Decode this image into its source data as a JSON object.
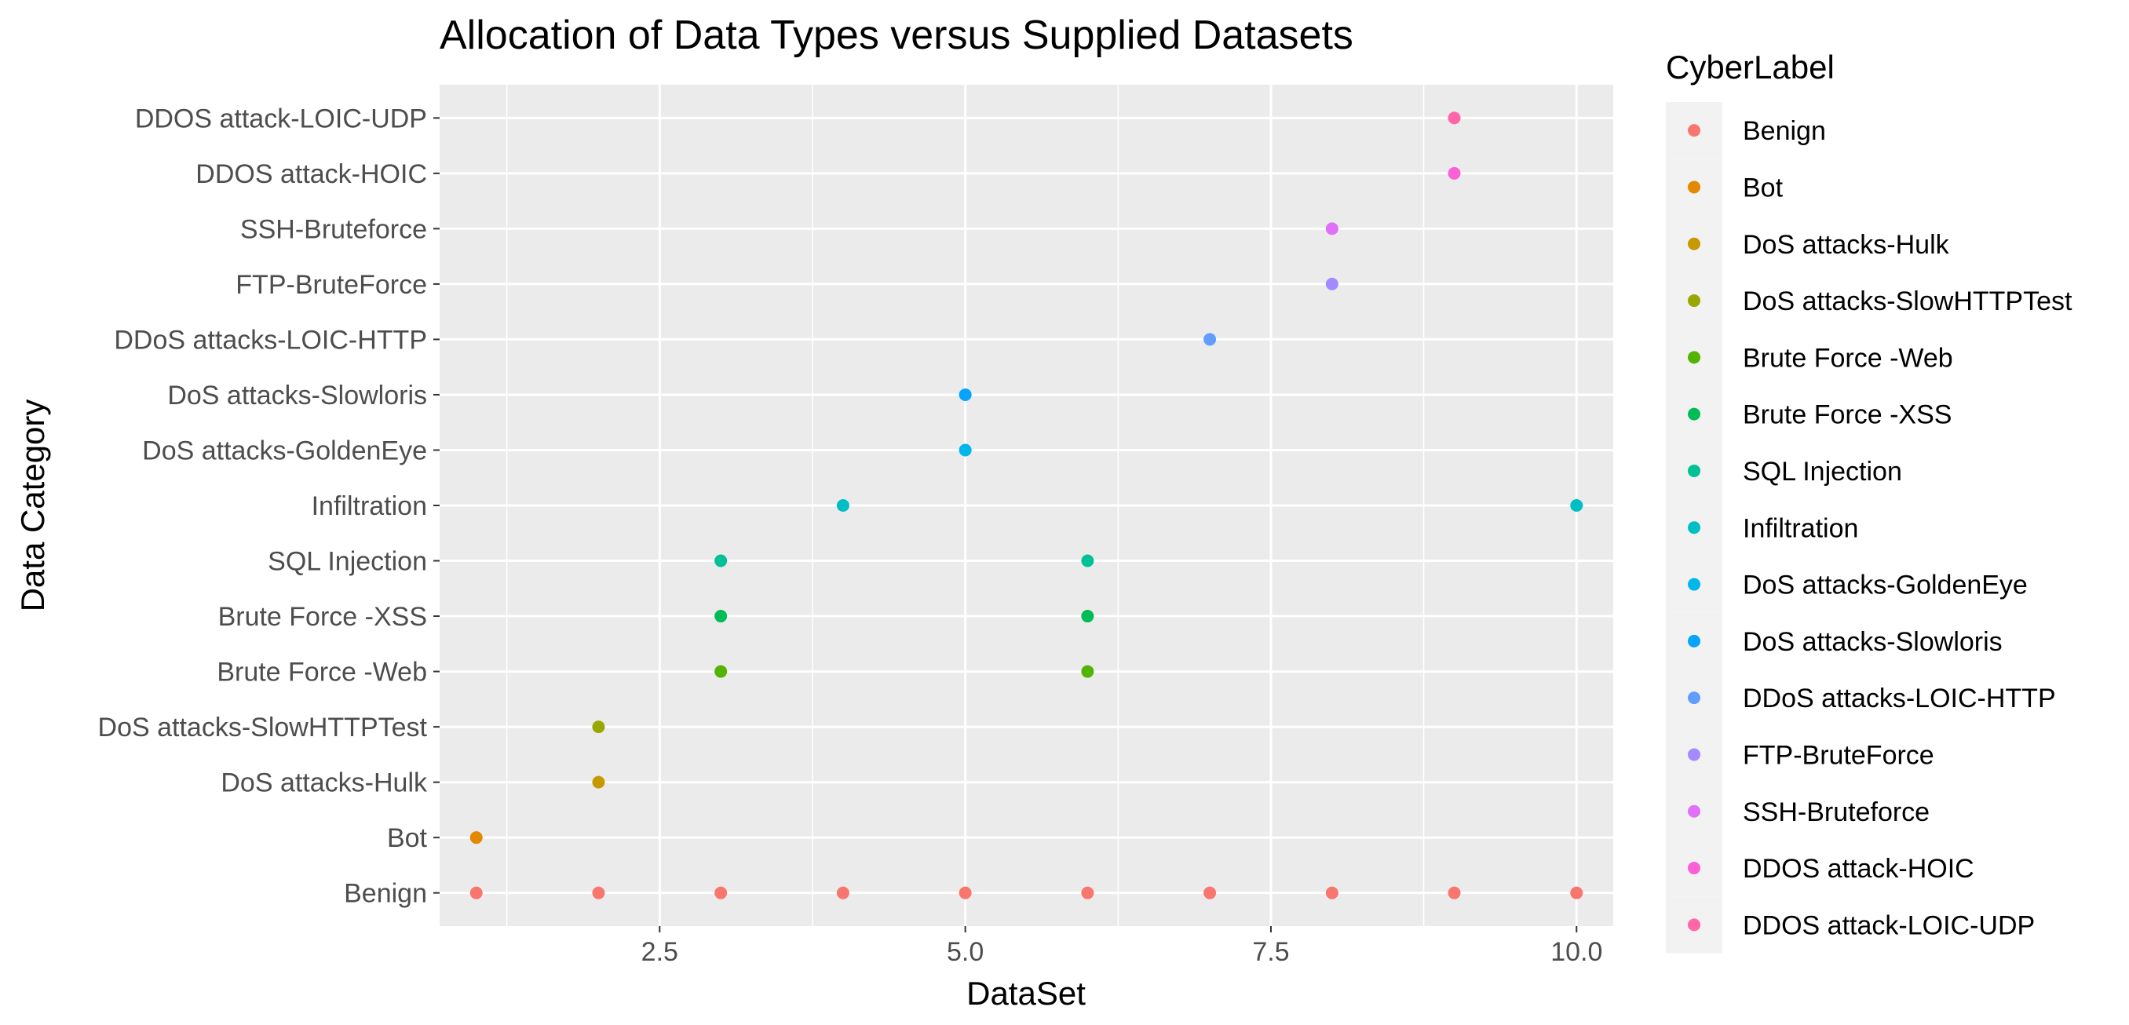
{
  "chart_data": {
    "type": "scatter",
    "title": "Allocation of Data Types versus Supplied Datasets",
    "xlabel": "DataSet",
    "ylabel": "Data Category",
    "xlim": [
      0.7,
      10.3
    ],
    "x_ticks": [
      2.5,
      5.0,
      7.5,
      10.0
    ],
    "x_tick_labels": [
      "2.5",
      "5.0",
      "7.5",
      "10.0"
    ],
    "categories": [
      "Benign",
      "Bot",
      "DoS attacks-Hulk",
      "DoS attacks-SlowHTTPTest",
      "Brute Force -Web",
      "Brute Force -XSS",
      "SQL Injection",
      "Infiltration",
      "DoS attacks-GoldenEye",
      "DoS attacks-Slowloris",
      "DDoS attacks-LOIC-HTTP",
      "FTP-BruteForce",
      "SSH-Bruteforce",
      "DDOS attack-HOIC",
      "DDOS attack-LOIC-UDP"
    ],
    "grid": true,
    "legend_position": "right",
    "legend_title": "CyberLabel",
    "series": [
      {
        "name": "Benign",
        "color": "#F8766D",
        "x": [
          1,
          2,
          3,
          4,
          5,
          6,
          7,
          8,
          9,
          10
        ]
      },
      {
        "name": "Bot",
        "color": "#E38900",
        "x": [
          1
        ]
      },
      {
        "name": "DoS attacks-Hulk",
        "color": "#C49A00",
        "x": [
          2
        ]
      },
      {
        "name": "DoS attacks-SlowHTTPTest",
        "color": "#99A800",
        "x": [
          2
        ]
      },
      {
        "name": "Brute Force -Web",
        "color": "#53B400",
        "x": [
          3,
          6
        ]
      },
      {
        "name": "Brute Force -XSS",
        "color": "#00BC56",
        "x": [
          3,
          6
        ]
      },
      {
        "name": "SQL Injection",
        "color": "#00C094",
        "x": [
          3,
          6
        ]
      },
      {
        "name": "Infiltration",
        "color": "#00BFC4",
        "x": [
          4,
          10
        ]
      },
      {
        "name": "DoS attacks-GoldenEye",
        "color": "#00B6EB",
        "x": [
          5
        ]
      },
      {
        "name": "DoS attacks-Slowloris",
        "color": "#06A4FF",
        "x": [
          5
        ]
      },
      {
        "name": "DDoS attacks-LOIC-HTTP",
        "color": "#619CFF",
        "x": [
          7
        ]
      },
      {
        "name": "FTP-BruteForce",
        "color": "#A58AFF",
        "x": [
          8
        ]
      },
      {
        "name": "SSH-Bruteforce",
        "color": "#DF70F8",
        "x": [
          8
        ]
      },
      {
        "name": "DDOS attack-HOIC",
        "color": "#FB61D7",
        "x": [
          9
        ]
      },
      {
        "name": "DDOS attack-LOIC-UDP",
        "color": "#FF66A8",
        "x": [
          9
        ]
      }
    ],
    "panel_color": "#EBEBEB",
    "grid_color": "#FFFFFF"
  }
}
